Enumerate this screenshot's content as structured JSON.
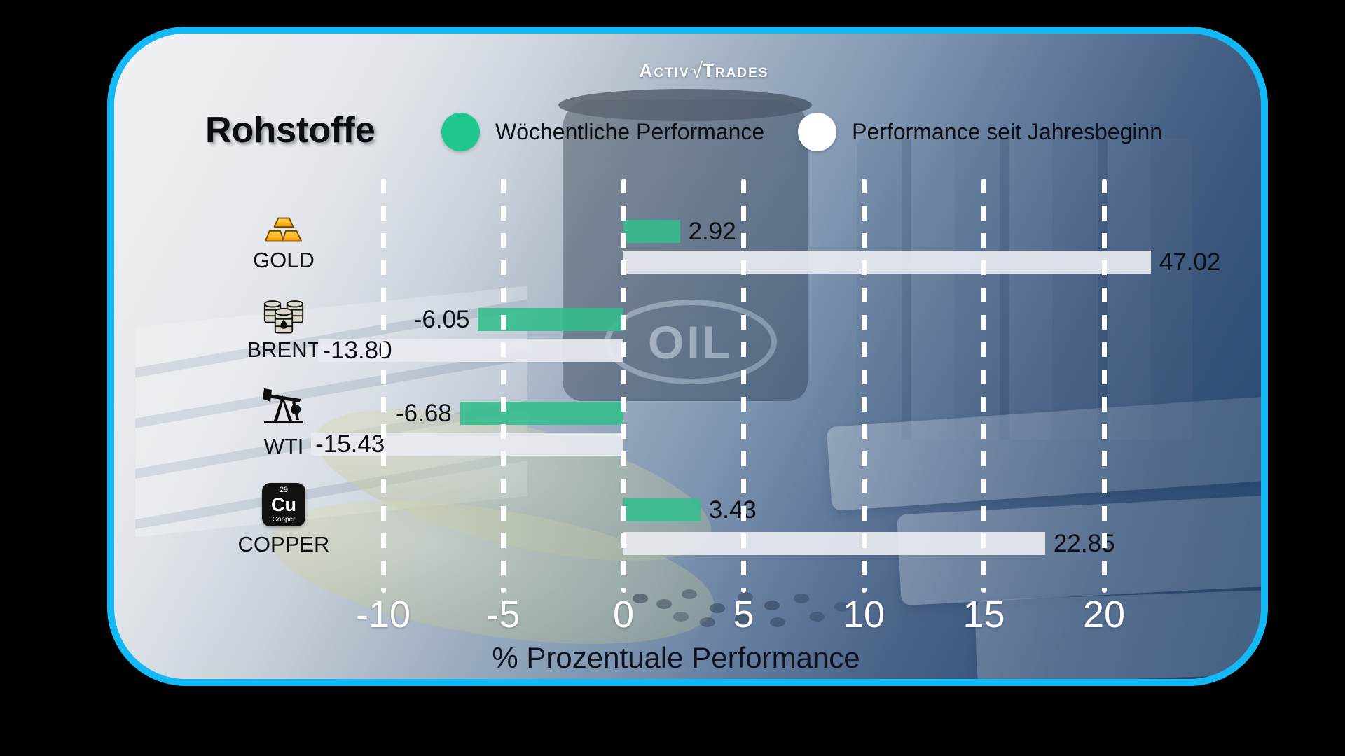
{
  "brand": {
    "logo_first": "Activ",
    "logo_check": "√",
    "logo_second": "Trades"
  },
  "title": "Rohstoffe",
  "legend": {
    "weekly": {
      "label": "Wöchentliche Performance",
      "color": "#1fc78e"
    },
    "ytd": {
      "label": "Performance seit Jahresbeginn",
      "color": "#ffffff"
    }
  },
  "background_text": {
    "oil": "OIL"
  },
  "axis": {
    "xlabel": "% Prozentuale Performance"
  },
  "chart_data": {
    "type": "bar",
    "orientation": "horizontal",
    "categories": [
      "GOLD",
      "BRENT",
      "WTI",
      "COPPER"
    ],
    "series": [
      {
        "name": "Wöchentliche Performance",
        "color": "#35bd8e",
        "values": [
          2.92,
          -6.05,
          -6.68,
          3.43
        ]
      },
      {
        "name": "Performance seit Jahresbeginn",
        "color": "#e7ebf0",
        "values": [
          47.02,
          -13.8,
          -15.43,
          22.85
        ]
      }
    ],
    "xlabel": "% Prozentuale Performance",
    "xticks": [
      -10,
      -5,
      0,
      5,
      10,
      15,
      20
    ],
    "xtick_labels": [
      "-10",
      "-5",
      "0",
      "5",
      "10",
      "15",
      "20"
    ],
    "grid": "vertical-dashed-white",
    "legend_position": "top",
    "xlim_display": [
      -13.4,
      26.8
    ]
  },
  "rows": [
    {
      "category": "GOLD",
      "icon": "gold-bars-icon",
      "weekly": {
        "value": 2.92,
        "label": "2.92",
        "display_units": 2.35,
        "label_placement": "right-out"
      },
      "ytd": {
        "value": 47.02,
        "label": "47.02",
        "display_units": 21.95,
        "label_placement": "right-out"
      }
    },
    {
      "category": "BRENT",
      "icon": "oil-barrels-icon",
      "weekly": {
        "value": -6.05,
        "label": "-6.05",
        "display_units": -6.05,
        "label_placement": "left-out"
      },
      "ytd": {
        "value": -13.8,
        "label": "-13.80",
        "display_units": -12.7,
        "label_placement": "left-in"
      }
    },
    {
      "category": "WTI",
      "icon": "oil-pumpjack-icon",
      "weekly": {
        "value": -6.68,
        "label": "-6.68",
        "display_units": -6.8,
        "label_placement": "left-out"
      },
      "ytd": {
        "value": -15.43,
        "label": "-15.43",
        "display_units": -13.0,
        "label_placement": "left-in"
      }
    },
    {
      "category": "COPPER",
      "icon": "copper-element-icon",
      "weekly": {
        "value": 3.43,
        "label": "3.43",
        "display_units": 3.2,
        "label_placement": "right-out"
      },
      "ytd": {
        "value": 22.85,
        "label": "22.85",
        "display_units": 17.55,
        "label_placement": "right-out"
      }
    }
  ],
  "copper_icon": {
    "number": "29",
    "symbol": "Cu",
    "name": "Copper"
  }
}
